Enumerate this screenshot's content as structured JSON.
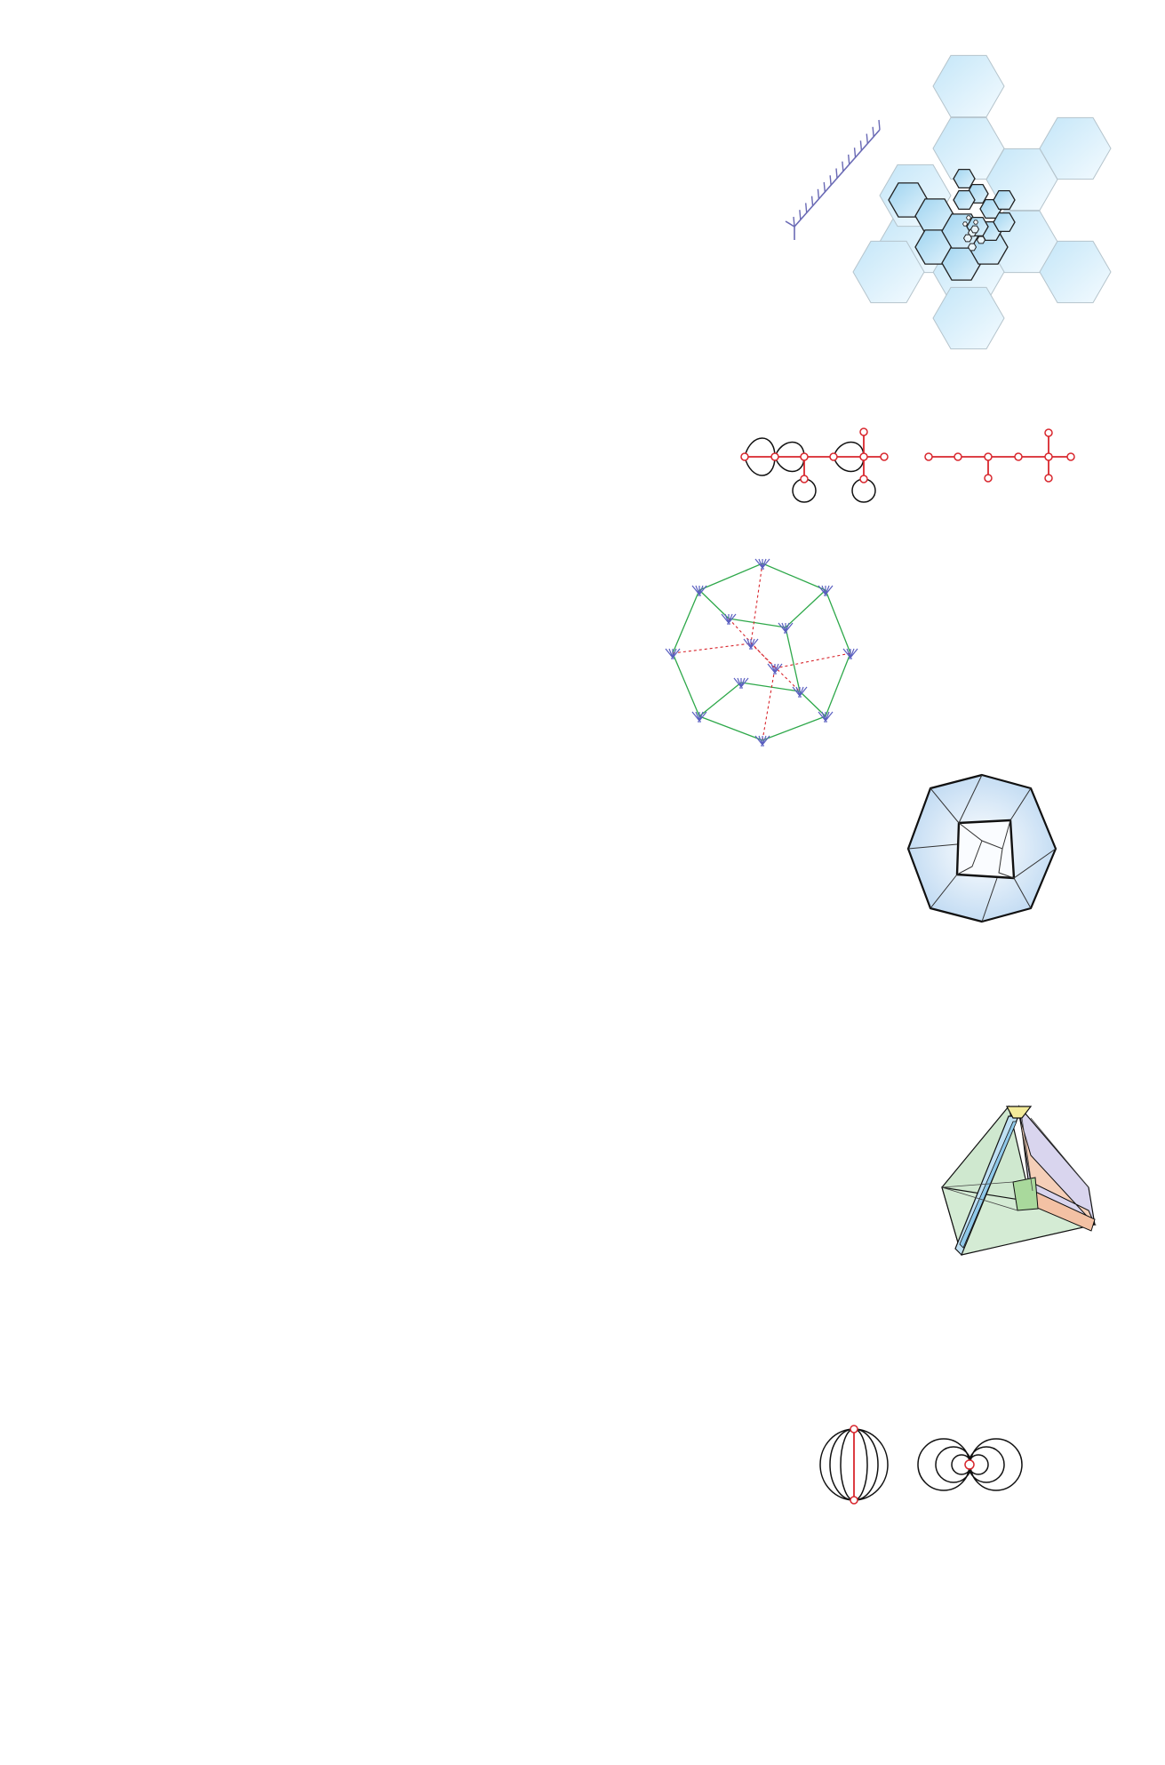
{
  "figures": [
    {
      "id": "hexagon-fractal",
      "kind": "nested hexagon tiling",
      "fill_colors": [
        "#cfeaf8",
        "#eaf6fd"
      ],
      "stroke_color": "#111111"
    },
    {
      "id": "rooted-tree-comb",
      "kind": "planar tree with leaves",
      "stroke_color": "#6a6ab5"
    },
    {
      "id": "ribbon-graphs",
      "kind": "graphs with loops and red spanning tree",
      "edge_color": "#d8262d",
      "loop_color": "#111111"
    },
    {
      "id": "corolla-cycle",
      "kind": "corollas joined by green and dotted red edges",
      "corolla_color": "#5a5fc0",
      "edge_color": "#2ea84a",
      "dashed_color": "#d8262d"
    },
    {
      "id": "octagon-polytope",
      "kind": "projected polytope with octagonal outline",
      "fill_color": "#cfe3f6"
    },
    {
      "id": "tetrahedral-polytope",
      "kind": "shaded polytope with colored facets",
      "facet_colors": [
        "#cfe8cf",
        "#d9d5ee",
        "#f5cfb8",
        "#bfe0f3",
        "#f3eb9a"
      ]
    },
    {
      "id": "loop-graphs",
      "kind": "banana graph and flower graph",
      "edge_color": "#111111",
      "vertex_color": "#d8262d"
    }
  ]
}
